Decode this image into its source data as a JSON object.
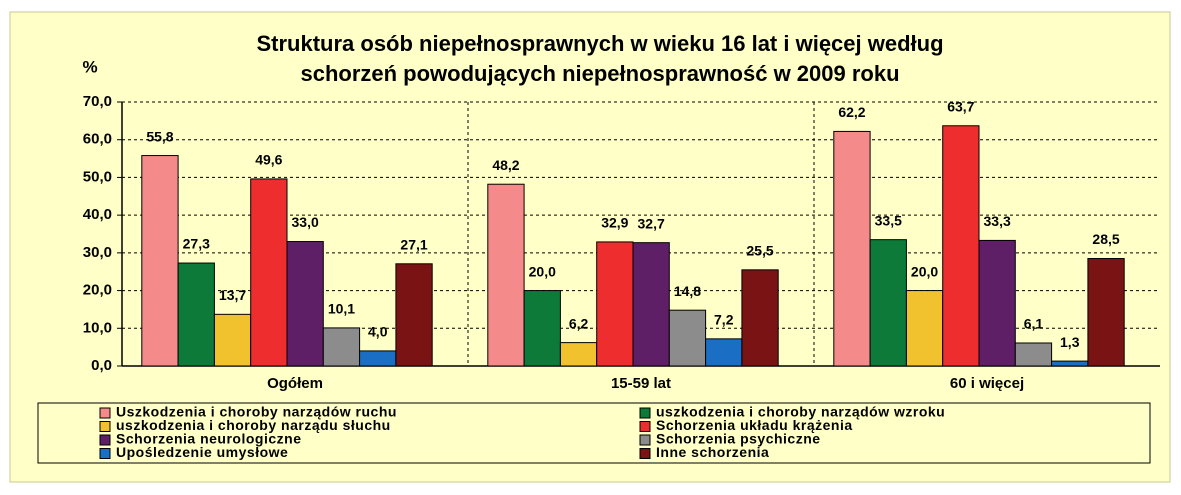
{
  "chart_data": {
    "type": "bar",
    "title": [
      "Struktura osób niepełnosprawnych w wieku 16 lat i więcej według",
      "schorzeń powodujących niepełnosprawność w 2009 roku"
    ],
    "y_label": "%",
    "categories": [
      "Ogółem",
      "15-59 lat",
      "60 i więcej"
    ],
    "ylim": [
      0,
      70
    ],
    "yticks": [
      {
        "value": 0,
        "label": "0,0"
      },
      {
        "value": 10,
        "label": "10,0"
      },
      {
        "value": 20,
        "label": "20,0"
      },
      {
        "value": 30,
        "label": "30,0"
      },
      {
        "value": 40,
        "label": "40,0"
      },
      {
        "value": 50,
        "label": "50,0"
      },
      {
        "value": 60,
        "label": "60,0"
      },
      {
        "value": 70,
        "label": "70,0"
      }
    ],
    "grid": true,
    "series": [
      {
        "name": "Uszkodzenia i choroby narządów ruchu",
        "color": "#f48a8a",
        "values": [
          55.8,
          48.2,
          62.2
        ],
        "value_labels": [
          "55,8",
          "48,2",
          "62,2"
        ]
      },
      {
        "name": "uszkodzenia i choroby narządów wzroku",
        "color": "#0e7a3a",
        "values": [
          27.3,
          20.0,
          33.5
        ],
        "value_labels": [
          "27,3",
          "20,0",
          "33,5"
        ]
      },
      {
        "name": "uszkodzenia i choroby narządu słuchu",
        "color": "#f2c12e",
        "values": [
          13.7,
          6.2,
          20.0
        ],
        "value_labels": [
          "13,7",
          "6,2",
          "20,0"
        ]
      },
      {
        "name": "Schorzenia układu krążenia",
        "color": "#ee2e2e",
        "values": [
          49.6,
          32.9,
          63.7
        ],
        "value_labels": [
          "49,6",
          "32,9",
          "63,7"
        ]
      },
      {
        "name": "Schorzenia neurologiczne",
        "color": "#5e1f66",
        "values": [
          33.0,
          32.7,
          33.3
        ],
        "value_labels": [
          "33,0",
          "32,7",
          "33,3"
        ]
      },
      {
        "name": "Schorzenia psychiczne",
        "color": "#8c8c8c",
        "values": [
          10.1,
          14.8,
          6.1
        ],
        "value_labels": [
          "10,1",
          "14,8",
          "6,1"
        ]
      },
      {
        "name": "Upośledzenie umysłowe",
        "color": "#1a6fc4",
        "values": [
          4.0,
          7.2,
          1.3
        ],
        "value_labels": [
          "4,0",
          "7,2",
          "1,3"
        ]
      },
      {
        "name": "Inne schorzenia",
        "color": "#7a1414",
        "values": [
          27.1,
          25.5,
          28.5
        ],
        "value_labels": [
          "27,1",
          "25,5",
          "28,5"
        ]
      }
    ]
  }
}
